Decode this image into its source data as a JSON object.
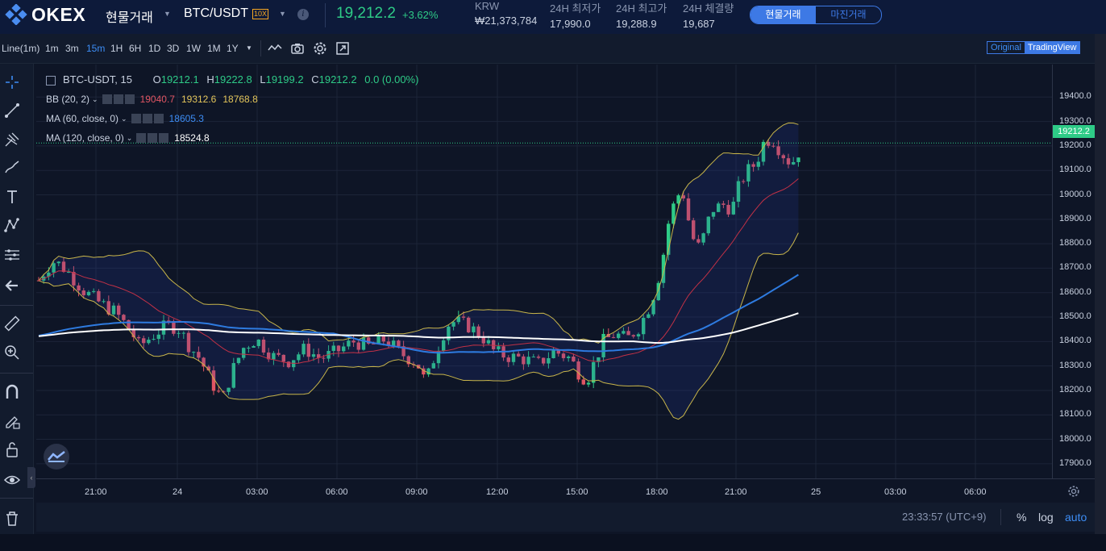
{
  "header": {
    "logo_text": "OKEX",
    "market_type": "현물거래",
    "pair": "BTC/USDT",
    "leverage_badge": "10X",
    "info_icon": "i",
    "last_price": "19,212.2",
    "change_pct": "+3.62%",
    "stats": [
      {
        "label": "KRW",
        "value": "₩21,373,784"
      },
      {
        "label": "24H 최저가",
        "value": "17,990.0"
      },
      {
        "label": "24H 최고가",
        "value": "19,288.9"
      },
      {
        "label": "24H 체결량",
        "value": "19,687"
      }
    ],
    "toggle": {
      "active": "현물거래",
      "inactive": "마진거래"
    },
    "colors": {
      "up": "#2ecb87",
      "down": "#e05563",
      "accent": "#3d79e5"
    }
  },
  "toolbar": {
    "chart_type": "Line(1m)",
    "intervals": [
      "1m",
      "3m",
      "15m",
      "1H",
      "6H",
      "1D",
      "3D",
      "1W",
      "1M",
      "1Y"
    ],
    "selected_interval": "15m",
    "icons": [
      "indicator-icon",
      "camera-icon",
      "gear-icon",
      "fullscreen-icon"
    ],
    "view_original": "Original",
    "view_tradingview": "TradingView"
  },
  "left_tools": [
    "crosshair-icon",
    "trend-line-icon",
    "pitchfork-icon",
    "brush-icon",
    "text-icon",
    "pattern-icon",
    "prediction-icon",
    "back-arrow-icon",
    "ruler-icon",
    "zoom-in-icon",
    "magnet-icon",
    "lock-drawing-icon",
    "unlock-icon",
    "eye-icon",
    "trash-icon"
  ],
  "legend": {
    "symbol": "BTC-USDT, 15",
    "o_label": "O",
    "o_val": "19212.1",
    "h_label": "H",
    "h_val": "19222.8",
    "l_label": "L",
    "l_val": "19199.2",
    "c_label": "C",
    "c_val": "19212.2",
    "chg": "0.0 (0.00%)"
  },
  "indicators": [
    {
      "name": "BB (20, 2)",
      "values": [
        {
          "v": "19040.7",
          "color": "#e05563"
        },
        {
          "v": "19312.6",
          "color": "#e3c55a"
        },
        {
          "v": "18768.8",
          "color": "#e3c55a"
        }
      ]
    },
    {
      "name": "MA (60, close, 0)",
      "values": [
        {
          "v": "18605.3",
          "color": "#3d8df5"
        }
      ]
    },
    {
      "name": "MA (120, close, 0)",
      "values": [
        {
          "v": "18524.8",
          "color": "#ffffff"
        }
      ]
    }
  ],
  "chart_data": {
    "type": "candlestick",
    "symbol": "BTC-USDT",
    "interval": "15",
    "ylim": [
      17850,
      19500
    ],
    "y_ticks": [
      "19400.0",
      "19300.0",
      "19200.0",
      "19100.0",
      "19000.0",
      "18900.0",
      "18800.0",
      "18700.0",
      "18600.0",
      "18500.0",
      "18400.0",
      "18300.0",
      "18200.0",
      "18100.0",
      "18000.0",
      "17900.0"
    ],
    "x_ticks": [
      "21:00",
      "24",
      "03:00",
      "06:00",
      "09:00",
      "12:00",
      "15:00",
      "18:00",
      "21:00",
      "25",
      "03:00",
      "06:00"
    ],
    "last_price_label": "19212.2",
    "grid": true
  },
  "footer": {
    "clock": "23:33:57 (UTC+9)",
    "opt_pct": "%",
    "opt_log": "log",
    "opt_auto": "auto"
  }
}
